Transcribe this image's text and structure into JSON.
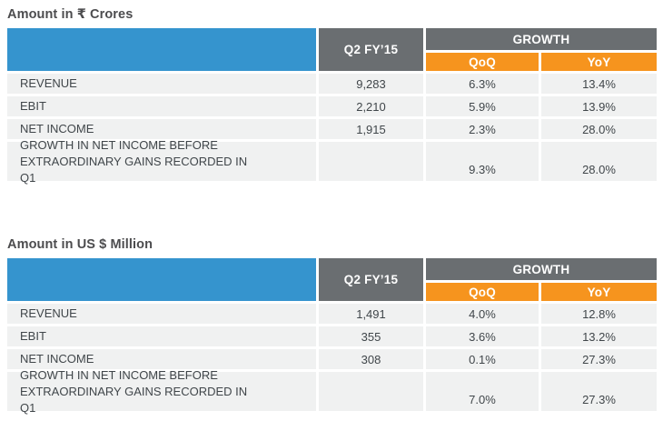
{
  "colors": {
    "header_blue": "#3594ce",
    "header_gray": "#6a6e71",
    "header_orange": "#f6941e",
    "row_background": "#f0f1f1",
    "body_text": "#40464a",
    "title_text": "#4c4c4e"
  },
  "tables": [
    {
      "title": "Amount in ₹ Crores",
      "header": {
        "period": "Q2 FY’15",
        "growth": "GROWTH",
        "qoq": "QoQ",
        "yoy": "YoY"
      },
      "rows": [
        {
          "label": "REVENUE",
          "value": "9,283",
          "qoq": "6.3%",
          "yoy": "13.4%"
        },
        {
          "label": "EBIT",
          "value": "2,210",
          "qoq": "5.9%",
          "yoy": "13.9%"
        },
        {
          "label": "NET INCOME",
          "value": "1,915",
          "qoq": "2.3%",
          "yoy": "28.0%"
        },
        {
          "label": "GROWTH IN NET INCOME BEFORE EXTRAORDINARY GAINS RECORDED IN Q1",
          "value": "",
          "qoq": "9.3%",
          "yoy": "28.0%"
        }
      ]
    },
    {
      "title": "Amount in US $ Million",
      "header": {
        "period": "Q2 FY’15",
        "growth": "GROWTH",
        "qoq": "QoQ",
        "yoy": "YoY"
      },
      "rows": [
        {
          "label": "REVENUE",
          "value": "1,491",
          "qoq": "4.0%",
          "yoy": "12.8%"
        },
        {
          "label": "EBIT",
          "value": "355",
          "qoq": "3.6%",
          "yoy": "13.2%"
        },
        {
          "label": "NET INCOME",
          "value": "308",
          "qoq": "0.1%",
          "yoy": "27.3%"
        },
        {
          "label": "GROWTH IN NET INCOME BEFORE EXTRAORDINARY GAINS RECORDED IN Q1",
          "value": "",
          "qoq": "7.0%",
          "yoy": "27.3%"
        }
      ]
    }
  ]
}
